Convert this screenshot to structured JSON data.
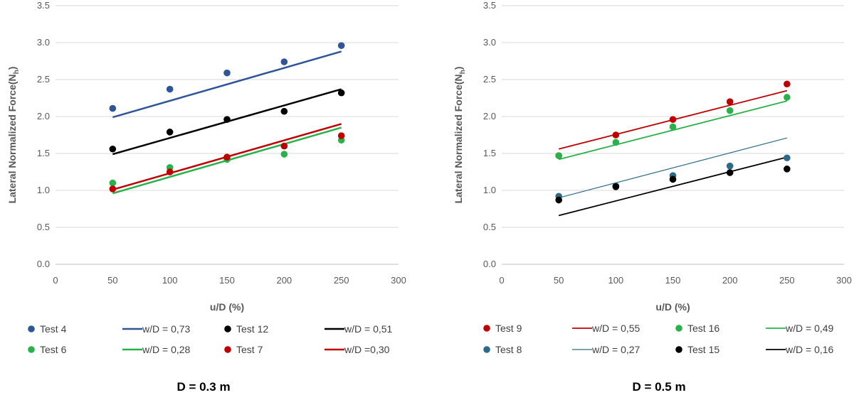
{
  "chart_data": [
    {
      "type": "scatter",
      "caption": "D = 0.3 m",
      "xlabel": "u/D (%)",
      "ylabel": "Lateral Normalized Force(N",
      "ylabel_sub": "h",
      "ylabel_close": ")",
      "xlim": [
        0,
        300
      ],
      "ylim": [
        0,
        3.5
      ],
      "xticks": [
        "0",
        "50",
        "100",
        "150",
        "200",
        "250",
        "300"
      ],
      "yticks": [
        "0.0",
        "0.5",
        "1.0",
        "1.5",
        "2.0",
        "2.5",
        "3.0",
        "3.5"
      ],
      "grid": true,
      "series": [
        {
          "name": "Test 4",
          "color": "#2E5597",
          "x": [
            50,
            100,
            150,
            200,
            250
          ],
          "y": [
            2.11,
            2.37,
            2.59,
            2.74,
            2.96
          ]
        },
        {
          "name": "Test 12",
          "color": "#000000",
          "x": [
            50,
            100,
            150,
            200,
            250
          ],
          "y": [
            1.56,
            1.79,
            1.96,
            2.07,
            2.32
          ]
        },
        {
          "name": "Test 6",
          "color": "#27B24A",
          "x": [
            50,
            100,
            150,
            200,
            250
          ],
          "y": [
            1.1,
            1.31,
            1.42,
            1.49,
            1.68
          ]
        },
        {
          "name": "Test 7",
          "color": "#C00000",
          "x": [
            50,
            100,
            150,
            200,
            250
          ],
          "y": [
            1.02,
            1.25,
            1.45,
            1.6,
            1.74
          ]
        }
      ],
      "trendlines": [
        {
          "name": "w/D = 0,73",
          "color": "#2E5597",
          "x": [
            50,
            250
          ],
          "y": [
            1.99,
            2.88
          ],
          "width": 2.5
        },
        {
          "name": "w/D = 0,51",
          "color": "#000000",
          "x": [
            50,
            250
          ],
          "y": [
            1.49,
            2.37
          ],
          "width": 2.5
        },
        {
          "name": "w/D = 0,28",
          "color": "#27B24A",
          "x": [
            50,
            250
          ],
          "y": [
            0.96,
            1.85
          ],
          "width": 2.5
        },
        {
          "name": "w/D =0,30",
          "color": "#C00000",
          "x": [
            50,
            250
          ],
          "y": [
            1.01,
            1.9
          ],
          "width": 2.5
        }
      ],
      "legend": [
        [
          "Test 4",
          "w/D = 0,73",
          "Test 12",
          "w/D = 0,51"
        ],
        [
          "Test 6",
          "w/D = 0,28",
          "Test 7",
          "w/D =0,30"
        ]
      ]
    },
    {
      "type": "scatter",
      "caption": "D = 0.5 m",
      "xlabel": "u/D (%)",
      "ylabel": "Lateral Normalized Force(N",
      "ylabel_sub": "h",
      "ylabel_close": ")",
      "xlim": [
        0,
        300
      ],
      "ylim": [
        0,
        3.5
      ],
      "xticks": [
        "0",
        "50",
        "100",
        "150",
        "200",
        "250",
        "300"
      ],
      "yticks": [
        "0.0",
        "0.5",
        "1.0",
        "1.5",
        "2.0",
        "2.5",
        "3.0",
        "3.5"
      ],
      "grid": true,
      "series": [
        {
          "name": "Test 9",
          "color": "#C00000",
          "x": [
            50,
            100,
            150,
            200,
            250
          ],
          "y": [
            1.47,
            1.75,
            1.96,
            2.2,
            2.44
          ]
        },
        {
          "name": "Test 16",
          "color": "#27B24A",
          "x": [
            50,
            100,
            150,
            200,
            250
          ],
          "y": [
            1.47,
            1.65,
            1.86,
            2.08,
            2.26
          ]
        },
        {
          "name": "Test 8",
          "color": "#2D6A8A",
          "x": [
            50,
            100,
            150,
            200,
            250
          ],
          "y": [
            0.92,
            1.06,
            1.2,
            1.33,
            1.44
          ]
        },
        {
          "name": "Test 15",
          "color": "#000000",
          "x": [
            50,
            100,
            150,
            200,
            250
          ],
          "y": [
            0.87,
            1.05,
            1.15,
            1.24,
            1.29
          ]
        }
      ],
      "trendlines": [
        {
          "name": "w/D = 0,55",
          "color": "#C00000",
          "x": [
            50,
            250
          ],
          "y": [
            1.56,
            2.35
          ],
          "width": 1.8
        },
        {
          "name": "w/D = 0,49",
          "color": "#27B24A",
          "x": [
            50,
            250
          ],
          "y": [
            1.42,
            2.21
          ],
          "width": 1.8
        },
        {
          "name": "w/D = 0,27",
          "color": "#2D6A8A",
          "x": [
            50,
            250
          ],
          "y": [
            0.9,
            1.71
          ],
          "width": 1.2
        },
        {
          "name": "w/D = 0,16",
          "color": "#000000",
          "x": [
            50,
            250
          ],
          "y": [
            0.66,
            1.45
          ],
          "width": 1.8
        }
      ],
      "legend": [
        [
          "Test 9",
          "w/D = 0,55",
          "Test 16",
          "w/D = 0,49"
        ],
        [
          "Test 8",
          "w/D = 0,27",
          "Test 15",
          "w/D = 0,16"
        ]
      ]
    }
  ]
}
